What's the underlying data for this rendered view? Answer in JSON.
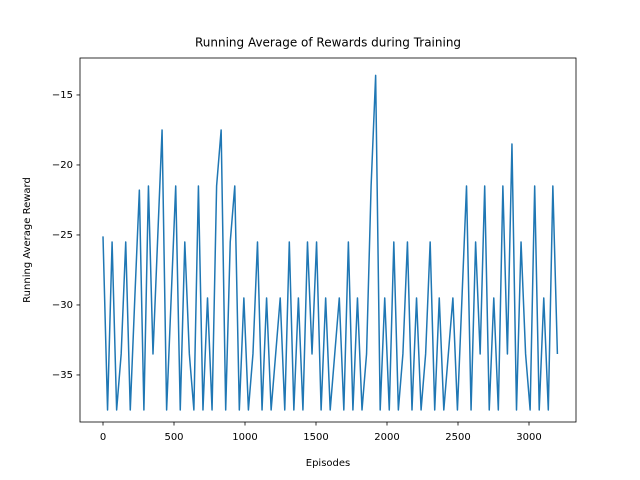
{
  "chart_data": {
    "type": "line",
    "title": "Running Average of Rewards during Training",
    "xlabel": "Episodes",
    "ylabel": "Running Average Reward",
    "x": [
      0,
      32,
      64,
      96,
      128,
      160,
      192,
      224,
      256,
      288,
      320,
      352,
      384,
      416,
      448,
      480,
      512,
      544,
      576,
      608,
      640,
      672,
      704,
      736,
      768,
      800,
      832,
      864,
      896,
      928,
      960,
      992,
      1024,
      1056,
      1088,
      1120,
      1152,
      1184,
      1216,
      1248,
      1280,
      1312,
      1344,
      1376,
      1408,
      1440,
      1472,
      1504,
      1536,
      1568,
      1600,
      1632,
      1664,
      1696,
      1728,
      1760,
      1792,
      1824,
      1856,
      1888,
      1920,
      1952,
      1984,
      2016,
      2048,
      2080,
      2112,
      2144,
      2176,
      2208,
      2240,
      2272,
      2304,
      2336,
      2368,
      2400,
      2432,
      2464,
      2496,
      2528,
      2560,
      2592,
      2624,
      2656,
      2688,
      2720,
      2752,
      2784,
      2816,
      2848,
      2880,
      2912,
      2944,
      2976,
      3008,
      3040,
      3072,
      3104,
      3136,
      3168,
      3200
    ],
    "series": [
      {
        "name": "Running Average Reward",
        "color": "#1f77b4",
        "values": [
          -25.1,
          -37.5,
          -25.5,
          -37.5,
          -33.5,
          -25.5,
          -37.5,
          -29.5,
          -21.8,
          -37.5,
          -21.5,
          -33.5,
          -25.5,
          -17.5,
          -37.5,
          -29.5,
          -21.5,
          -37.5,
          -25.5,
          -33.5,
          -37.5,
          -21.5,
          -37.5,
          -29.5,
          -37.5,
          -21.5,
          -17.5,
          -37.5,
          -25.5,
          -21.5,
          -37.5,
          -29.5,
          -37.5,
          -33.5,
          -25.5,
          -37.5,
          -29.5,
          -37.5,
          -33.5,
          -29.5,
          -37.5,
          -25.5,
          -37.5,
          -29.5,
          -37.5,
          -25.5,
          -33.5,
          -25.5,
          -37.5,
          -29.5,
          -37.5,
          -33.5,
          -29.5,
          -37.5,
          -25.5,
          -37.5,
          -29.5,
          -37.5,
          -33.5,
          -21.5,
          -13.6,
          -37.5,
          -29.5,
          -37.5,
          -25.5,
          -37.5,
          -33.5,
          -25.5,
          -37.5,
          -29.5,
          -37.5,
          -33.5,
          -25.5,
          -37.5,
          -29.5,
          -37.5,
          -33.5,
          -29.5,
          -37.5,
          -29.5,
          -21.5,
          -37.5,
          -25.5,
          -33.5,
          -21.5,
          -37.5,
          -29.5,
          -37.5,
          -21.5,
          -33.5,
          -18.5,
          -37.5,
          -25.5,
          -33.5,
          -37.5,
          -21.5,
          -37.5,
          -29.5,
          -37.5,
          -21.5,
          -33.5
        ]
      }
    ],
    "xlim": [
      -162,
      3331
    ],
    "ylim": [
      -38.36,
      -12.36
    ],
    "xticks": [
      0,
      500,
      1000,
      1500,
      2000,
      2500,
      3000
    ],
    "yticks": [
      {
        "value": -35,
        "label": "−35"
      },
      {
        "value": -30,
        "label": "−30"
      },
      {
        "value": -25,
        "label": "−25"
      },
      {
        "value": -20,
        "label": "−20"
      },
      {
        "value": -15,
        "label": "−15"
      }
    ],
    "grid": false
  }
}
